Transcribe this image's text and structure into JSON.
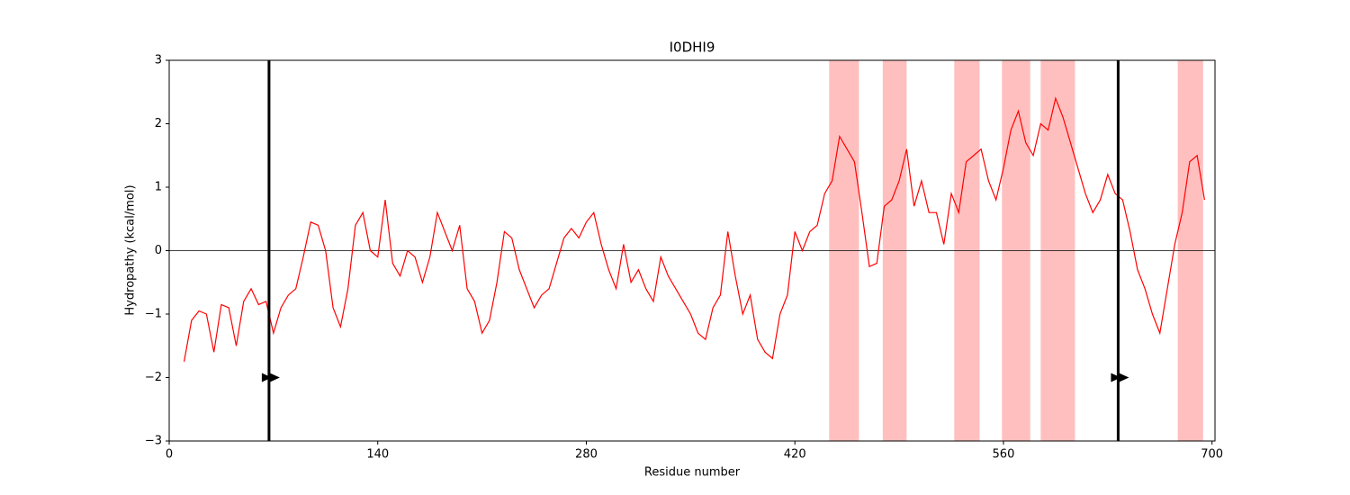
{
  "chart_data": {
    "type": "line",
    "title": "I0DHI9",
    "x_label": "Residue number",
    "y_label": "Hydropathy (kcal/mol)",
    "color": "#ff0000",
    "region_color": "#ffbfbf",
    "xlim": [
      0,
      702
    ],
    "ylim": [
      -3,
      3
    ],
    "xticks": [
      0,
      140,
      280,
      420,
      560,
      700
    ],
    "yticks": [
      {
        "value": -3,
        "label": "−3"
      },
      {
        "value": -2,
        "label": "−2"
      },
      {
        "value": -1,
        "label": "−1"
      },
      0,
      1,
      2,
      3
    ],
    "hline": 0,
    "regions": [
      [
        443,
        463
      ],
      [
        479,
        495
      ],
      [
        527,
        544
      ],
      [
        559,
        578
      ],
      [
        585,
        608
      ],
      [
        677,
        694
      ]
    ],
    "vlines": [
      67,
      637
    ],
    "markers": {
      "x": [
        67,
        637
      ],
      "y": [
        -2,
        -2
      ]
    },
    "x": [
      10,
      15,
      20,
      25,
      30,
      35,
      40,
      45,
      50,
      55,
      60,
      65,
      70,
      75,
      80,
      85,
      90,
      95,
      100,
      105,
      110,
      115,
      120,
      125,
      130,
      135,
      140,
      145,
      150,
      155,
      160,
      165,
      170,
      175,
      180,
      185,
      190,
      195,
      200,
      205,
      210,
      215,
      220,
      225,
      230,
      235,
      240,
      245,
      250,
      255,
      260,
      265,
      270,
      275,
      280,
      285,
      290,
      295,
      300,
      305,
      310,
      315,
      320,
      325,
      330,
      335,
      340,
      345,
      350,
      355,
      360,
      365,
      370,
      375,
      380,
      385,
      390,
      395,
      400,
      405,
      410,
      415,
      420,
      425,
      430,
      435,
      440,
      445,
      450,
      455,
      460,
      465,
      470,
      475,
      480,
      485,
      490,
      495,
      500,
      505,
      510,
      515,
      520,
      525,
      530,
      535,
      540,
      545,
      550,
      555,
      560,
      565,
      570,
      575,
      580,
      585,
      590,
      595,
      600,
      605,
      610,
      615,
      620,
      625,
      630,
      635,
      640,
      645,
      650,
      655,
      660,
      665,
      670,
      675,
      680,
      685,
      690,
      695
    ],
    "values": [
      -1.75,
      -1.1,
      -0.95,
      -1.0,
      -1.6,
      -0.85,
      -0.9,
      -1.5,
      -0.8,
      -0.6,
      -0.85,
      -0.8,
      -1.3,
      -0.9,
      -0.7,
      -0.6,
      -0.1,
      0.45,
      0.4,
      0.0,
      -0.9,
      -1.2,
      -0.6,
      0.4,
      0.6,
      0.0,
      -0.1,
      0.8,
      -0.2,
      -0.4,
      0.0,
      -0.1,
      -0.5,
      -0.1,
      0.6,
      0.3,
      0.0,
      0.4,
      -0.6,
      -0.8,
      -1.3,
      -1.1,
      -0.5,
      0.3,
      0.2,
      -0.3,
      -0.6,
      -0.9,
      -0.7,
      -0.6,
      -0.2,
      0.2,
      0.35,
      0.2,
      0.45,
      0.6,
      0.1,
      -0.3,
      -0.6,
      0.1,
      -0.5,
      -0.3,
      -0.6,
      -0.8,
      -0.1,
      -0.4,
      -0.6,
      -0.8,
      -1.0,
      -1.3,
      -1.4,
      -0.9,
      -0.7,
      0.3,
      -0.4,
      -1.0,
      -0.7,
      -1.4,
      -1.6,
      -1.7,
      -1.0,
      -0.7,
      0.3,
      0.0,
      0.3,
      0.4,
      0.9,
      1.1,
      1.8,
      1.6,
      1.4,
      0.6,
      -0.25,
      -0.2,
      0.7,
      0.8,
      1.1,
      1.6,
      0.7,
      1.1,
      0.6,
      0.6,
      0.1,
      0.9,
      0.6,
      1.4,
      1.5,
      1.6,
      1.1,
      0.8,
      1.3,
      1.9,
      2.2,
      1.7,
      1.5,
      2.0,
      1.9,
      2.4,
      2.1,
      1.7,
      1.3,
      0.9,
      0.6,
      0.8,
      1.2,
      0.9,
      0.8,
      0.3,
      -0.3,
      -0.6,
      -1.0,
      -1.3,
      -0.6,
      0.1,
      0.6,
      1.4,
      1.5,
      0.8
    ]
  }
}
